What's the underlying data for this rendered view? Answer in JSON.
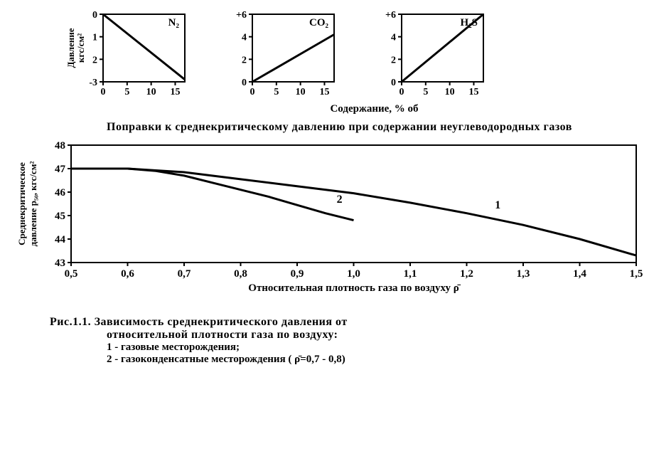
{
  "topCharts": {
    "shared_x_ticks": [
      0,
      5,
      10,
      15
    ],
    "x_label": "Содержание, % об",
    "y_label_rotated": "Давление кгс/см²",
    "line_color": "#000000",
    "line_width": 3,
    "axis_color": "#000000",
    "axis_width": 2,
    "tick_font_size": 14,
    "label_font_size": 15,
    "charts": [
      {
        "name": "N₂",
        "y_ticks": [
          "0",
          "1",
          "2",
          "-3"
        ],
        "y_vals": [
          0,
          -1,
          -2,
          -3
        ],
        "line": [
          [
            0,
            0
          ],
          [
            17,
            -2.9
          ]
        ]
      },
      {
        "name": "CO₂",
        "y_ticks": [
          "+6",
          "4",
          "2",
          "0"
        ],
        "y_vals": [
          6,
          4,
          2,
          0
        ],
        "line": [
          [
            0,
            0
          ],
          [
            17,
            4.2
          ]
        ]
      },
      {
        "name": "H₂S",
        "y_ticks": [
          "+6",
          "4",
          "2",
          "0"
        ],
        "y_vals": [
          6,
          4,
          2,
          0
        ],
        "line": [
          [
            0,
            0
          ],
          [
            17,
            6.0
          ]
        ]
      }
    ]
  },
  "correctionTitle": "Поправки к среднекритическому давлению при содержании неуглеводородных газов",
  "mainChart": {
    "y_label": "Среднекритическое давление p₅₀, кгс/см²",
    "x_label": "Относительная плотность газа по воздуху  ρ̄",
    "x_ticks": [
      "0,5",
      "0,6",
      "0,7",
      "0,8",
      "0,9",
      "1,0",
      "1,1",
      "1,2",
      "1,3",
      "1,4",
      "1,5"
    ],
    "x_vals": [
      0.5,
      0.6,
      0.7,
      0.8,
      0.9,
      1.0,
      1.1,
      1.2,
      1.3,
      1.4,
      1.5
    ],
    "y_ticks": [
      43,
      44,
      45,
      46,
      47,
      48
    ],
    "line_color": "#000000",
    "line_width": 3,
    "border_color": "#000000",
    "border_width": 2,
    "series": [
      {
        "id": "1",
        "label_pos": [
          1.25,
          45.3
        ],
        "points": [
          [
            0.5,
            47.0
          ],
          [
            0.6,
            47.0
          ],
          [
            0.7,
            46.85
          ],
          [
            0.8,
            46.55
          ],
          [
            0.9,
            46.25
          ],
          [
            1.0,
            45.95
          ],
          [
            1.1,
            45.55
          ],
          [
            1.2,
            45.1
          ],
          [
            1.3,
            44.6
          ],
          [
            1.4,
            44.0
          ],
          [
            1.5,
            43.3
          ]
        ]
      },
      {
        "id": "2",
        "label_pos": [
          0.97,
          45.55
        ],
        "points": [
          [
            0.5,
            47.0
          ],
          [
            0.6,
            47.0
          ],
          [
            0.65,
            46.9
          ],
          [
            0.7,
            46.7
          ],
          [
            0.75,
            46.4
          ],
          [
            0.8,
            46.1
          ],
          [
            0.85,
            45.8
          ],
          [
            0.9,
            45.45
          ],
          [
            0.95,
            45.1
          ],
          [
            1.0,
            44.8
          ]
        ]
      }
    ]
  },
  "caption": {
    "title": "Рис.1.1. Зависимость среднекритического давления от",
    "title2": "относительной плотности газа по воздуху:",
    "item1": "1 - газовые месторождения;",
    "item2": "2 - газоконденсатные месторождения (  ρ̄=0,7 - 0,8)"
  }
}
